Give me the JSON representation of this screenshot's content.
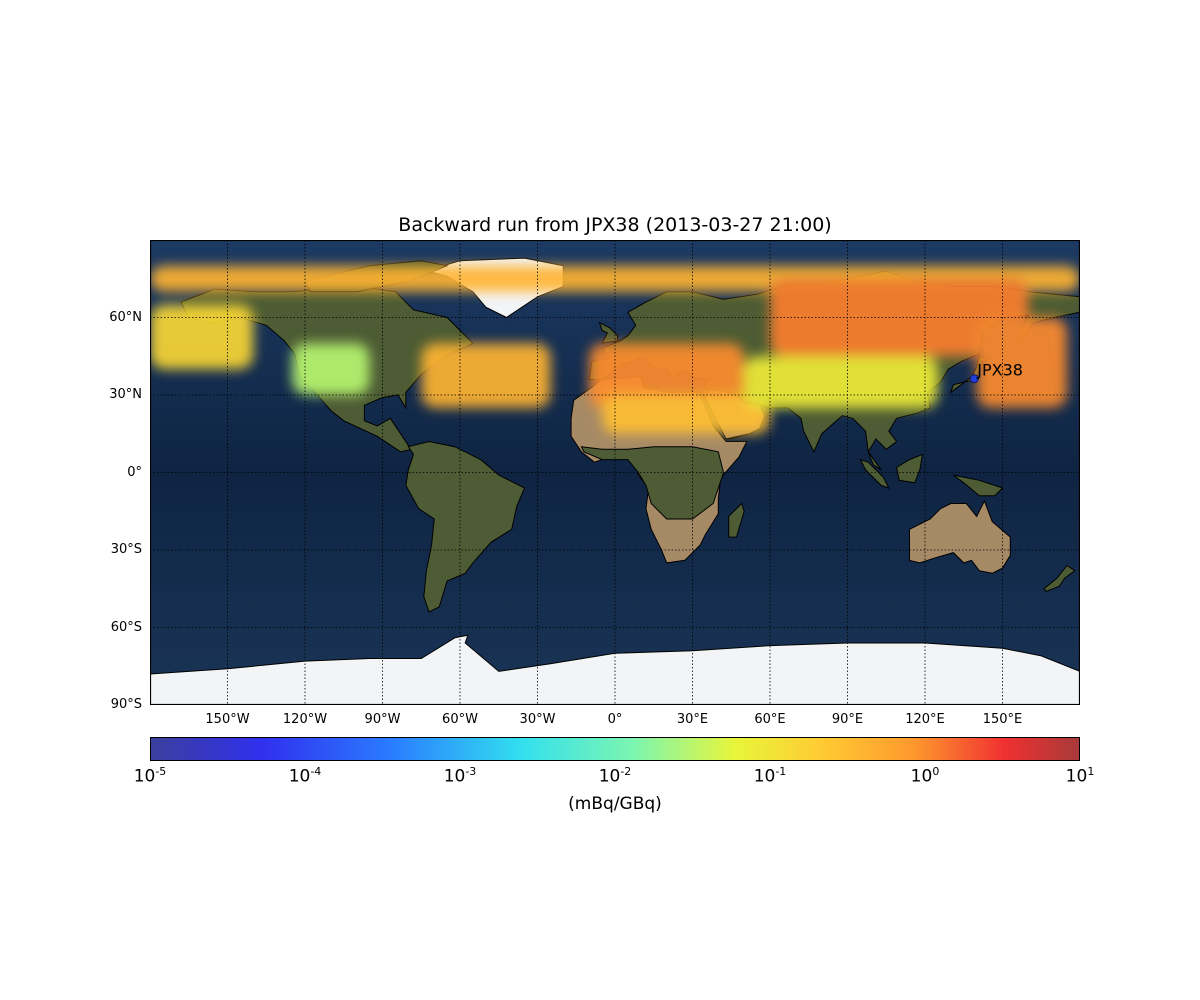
{
  "title": "Backward run from JPX38 (2013-03-27 21:00)",
  "station": {
    "name": "JPX38",
    "label": "JPX38",
    "lon": 139.08,
    "lat": 36.3,
    "marker_color": "#1f3fd6"
  },
  "map": {
    "projection": "equirectangular",
    "lon_range": [
      -180,
      180
    ],
    "lat_range": [
      -90,
      90
    ],
    "lat_ticks": [
      {
        "value": 60,
        "label": "60°N"
      },
      {
        "value": 30,
        "label": "30°N"
      },
      {
        "value": 0,
        "label": "0°"
      },
      {
        "value": -30,
        "label": "30°S"
      },
      {
        "value": -60,
        "label": "60°S"
      },
      {
        "value": -90,
        "label": "90°S"
      }
    ],
    "lon_ticks": [
      {
        "value": -150,
        "label": "150°W"
      },
      {
        "value": -120,
        "label": "120°W"
      },
      {
        "value": -90,
        "label": "90°W"
      },
      {
        "value": -60,
        "label": "60°W"
      },
      {
        "value": -30,
        "label": "30°W"
      },
      {
        "value": 0,
        "label": "0°"
      },
      {
        "value": 30,
        "label": "30°E"
      },
      {
        "value": 60,
        "label": "60°E"
      },
      {
        "value": 90,
        "label": "90°E"
      },
      {
        "value": 120,
        "label": "120°E"
      },
      {
        "value": 150,
        "label": "150°E"
      }
    ],
    "colors": {
      "ocean": "#132b4c",
      "land": "#4d5c34",
      "desert": "#a68a66",
      "ice": "#f2f4f6"
    }
  },
  "colorbar": {
    "scale": "log",
    "range": [
      1e-05,
      10
    ],
    "ticks": [
      {
        "base": "10",
        "exp": "-5"
      },
      {
        "base": "10",
        "exp": "-4"
      },
      {
        "base": "10",
        "exp": "-3"
      },
      {
        "base": "10",
        "exp": "-2"
      },
      {
        "base": "10",
        "exp": "-1"
      },
      {
        "base": "10",
        "exp": "0"
      },
      {
        "base": "10",
        "exp": "1"
      }
    ],
    "unit": "(mBq/GBq)"
  },
  "plume_regions": [
    {
      "name": "arctic-band",
      "lon": [
        -180,
        180
      ],
      "lat": [
        70,
        80
      ],
      "level": 0.4
    },
    {
      "name": "siberia",
      "lon": [
        60,
        160
      ],
      "lat": [
        45,
        75
      ],
      "level": 1.2
    },
    {
      "name": "north-pacific",
      "lon": [
        140,
        175
      ],
      "lat": [
        25,
        60
      ],
      "level": 1.0
    },
    {
      "name": "europe-mediterranean",
      "lon": [
        -10,
        50
      ],
      "lat": [
        25,
        50
      ],
      "level": 1.0
    },
    {
      "name": "north-atlantic",
      "lon": [
        -75,
        -25
      ],
      "lat": [
        25,
        50
      ],
      "level": 0.4
    },
    {
      "name": "sahara-arabia",
      "lon": [
        -5,
        60
      ],
      "lat": [
        15,
        30
      ],
      "level": 0.3
    },
    {
      "name": "central-asia",
      "lon": [
        50,
        125
      ],
      "lat": [
        25,
        45
      ],
      "level": 0.08
    },
    {
      "name": "east-pacific-alaska",
      "lon": [
        -180,
        -140
      ],
      "lat": [
        40,
        65
      ],
      "level": 0.15
    },
    {
      "name": "north-america",
      "lon": [
        -125,
        -95
      ],
      "lat": [
        30,
        50
      ],
      "level": 0.03
    }
  ]
}
